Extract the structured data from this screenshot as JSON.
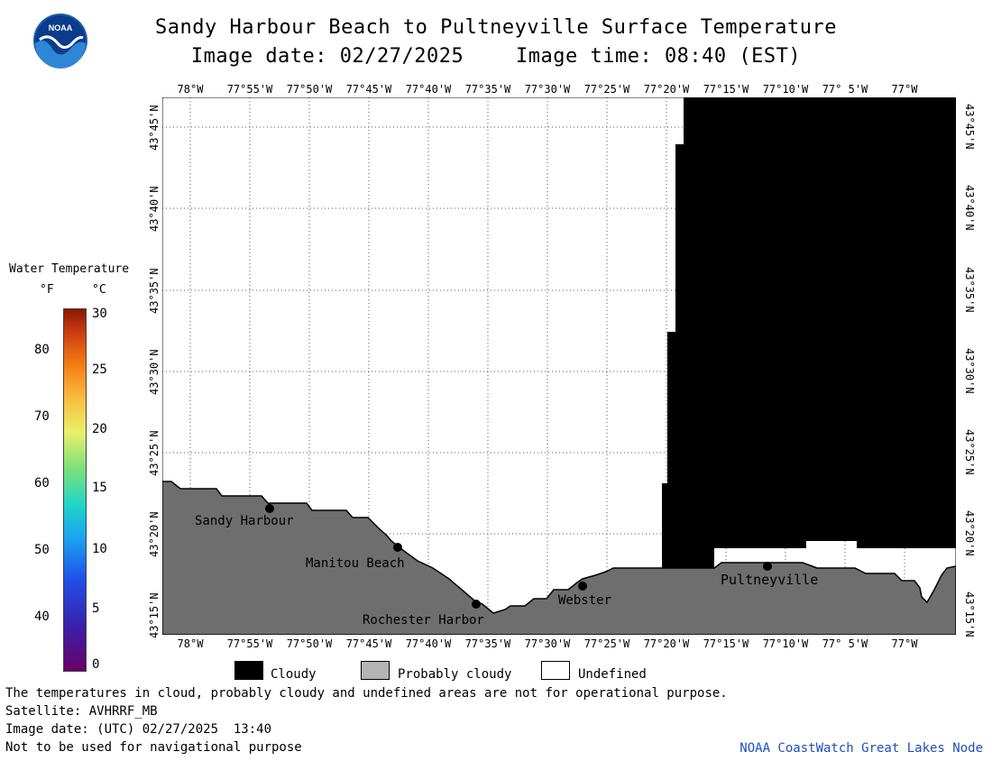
{
  "header": {
    "title": "Sandy Harbour Beach to Pultneyville Surface Temperature",
    "image_date": "Image date: 02/27/2025",
    "image_time": "Image time: 08:40 (EST)"
  },
  "map": {
    "lon_labels": [
      "78°W",
      "77°55'W",
      "77°50'W",
      "77°45'W",
      "77°40'W",
      "77°35'W",
      "77°30'W",
      "77°25'W",
      "77°20'W",
      "77°15'W",
      "77°10'W",
      "77° 5'W",
      "77°W"
    ],
    "bottom_lon_labels": [
      "78°W",
      "77°55'W",
      "77°50'W",
      "77°45'W",
      "77°40'W",
      "77°35'W",
      "77°30'W",
      "77°25'W",
      "77°20'W",
      "77°15'W",
      "77°10'W",
      "77° 5'W",
      "77°W"
    ],
    "lat_labels": [
      "43°45'N",
      "43°40'N",
      "43°35'N",
      "43°30'N",
      "43°25'N",
      "43°20'N",
      "43°15'N"
    ],
    "places": [
      {
        "name": "Sandy Harbour"
      },
      {
        "name": "Manitou Beach"
      },
      {
        "name": "Rochester Harbor"
      },
      {
        "name": "Webster"
      },
      {
        "name": "Pultneyville"
      }
    ],
    "colors": {
      "land": "#6e6e6e",
      "cloud": "#000000",
      "water_undefined": "#ffffff",
      "grid": "#555555"
    }
  },
  "colorbar": {
    "title": "Water Temperature",
    "unit_f": "°F",
    "unit_c": "°C",
    "f_ticks": [
      "80",
      "70",
      "60",
      "50",
      "40"
    ],
    "c_ticks": [
      "30",
      "25",
      "20",
      "15",
      "10",
      "5",
      "0"
    ]
  },
  "legend": {
    "cloudy": "Cloudy",
    "probably_cloudy": "Probably cloudy",
    "undefined": "Undefined",
    "colors": {
      "cloudy": "#000000",
      "probably_cloudy": "#b4b4b4",
      "undefined": "#ffffff"
    }
  },
  "footer": {
    "disclaimer": "The temperatures in cloud, probably cloudy and undefined areas are not for operational purpose.",
    "satellite": "Satellite: AVHRRF_MB",
    "utc_date": "Image date: (UTC) 02/27/2025  13:40",
    "nav_warning": "Not to be used for navigational purpose",
    "node": "NOAA CoastWatch Great Lakes Node",
    "node_color": "#1f4fbf"
  }
}
